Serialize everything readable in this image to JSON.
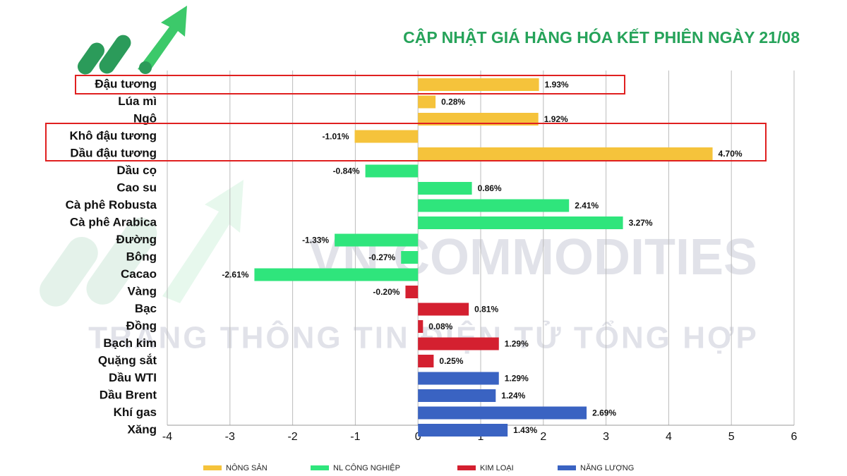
{
  "chart_data": {
    "type": "bar",
    "orientation": "horizontal",
    "title": "CẬP NHẬT GIÁ HÀNG HÓA KẾT PHIÊN NGÀY 21/08",
    "watermark": [
      "VN COMMODITIES",
      "TRANG THÔNG TIN ĐIỆN TỬ TỔNG HỢP"
    ],
    "categories": [
      "Đậu tương",
      "Lúa mì",
      "Ngô",
      "Khô đậu tương",
      "Dầu đậu tương",
      "Dầu cọ",
      "Cao su",
      "Cà phê Robusta",
      "Cà phê Arabica",
      "Đường",
      "Bông",
      "Cacao",
      "Vàng",
      "Bạc",
      "Đồng",
      "Bạch kim",
      "Quặng sắt",
      "Dầu WTI",
      "Dầu Brent",
      "Khí gas",
      "Xăng"
    ],
    "series": [
      {
        "name": "NÔNG SẢN",
        "color": "#f5c33b",
        "values": [
          1.93,
          0.28,
          1.92,
          -1.01,
          4.7,
          null,
          null,
          null,
          null,
          null,
          null,
          null,
          null,
          null,
          null,
          null,
          null,
          null,
          null,
          null,
          null
        ],
        "value_labels": [
          "1.93%",
          "0.28%",
          "1.92%",
          "-1.01%",
          "4.70%",
          null,
          null,
          null,
          null,
          null,
          null,
          null,
          null,
          null,
          null,
          null,
          null,
          null,
          null,
          null,
          null
        ]
      },
      {
        "name": "NL CÔNG NGHIỆP",
        "color": "#2fe57c",
        "values": [
          null,
          null,
          null,
          null,
          null,
          -0.84,
          0.86,
          2.41,
          3.27,
          -1.33,
          -0.27,
          -2.61,
          null,
          null,
          null,
          null,
          null,
          null,
          null,
          null,
          null
        ],
        "value_labels": [
          null,
          null,
          null,
          null,
          null,
          "-0.84%",
          "0.86%",
          "2.41%",
          "3.27%",
          "-1.33%",
          "-0.27%",
          "-2.61%",
          null,
          null,
          null,
          null,
          null,
          null,
          null,
          null,
          null
        ]
      },
      {
        "name": "KIM LOẠI",
        "color": "#d42030",
        "values": [
          null,
          null,
          null,
          null,
          null,
          null,
          null,
          null,
          null,
          null,
          null,
          null,
          -0.2,
          0.81,
          0.08,
          1.29,
          0.25,
          null,
          null,
          null,
          null
        ],
        "value_labels": [
          null,
          null,
          null,
          null,
          null,
          null,
          null,
          null,
          null,
          null,
          null,
          null,
          "-0.20%",
          "0.81%",
          "0.08%",
          "1.29%",
          "0.25%",
          null,
          null,
          null,
          null
        ]
      },
      {
        "name": "NĂNG LƯỢNG",
        "color": "#3a63c2",
        "values": [
          null,
          null,
          null,
          null,
          null,
          null,
          null,
          null,
          null,
          null,
          null,
          null,
          null,
          null,
          null,
          null,
          null,
          1.29,
          1.24,
          2.69,
          1.43
        ],
        "value_labels": [
          null,
          null,
          null,
          null,
          null,
          null,
          null,
          null,
          null,
          null,
          null,
          null,
          null,
          null,
          null,
          null,
          null,
          "1.29%",
          "1.24%",
          "2.69%",
          "1.43%"
        ]
      }
    ],
    "xlim": [
      -4,
      6
    ],
    "xticks": [
      -4,
      -3,
      -2,
      -1,
      0,
      1,
      2,
      3,
      4,
      5,
      6
    ],
    "grid": true
  }
}
